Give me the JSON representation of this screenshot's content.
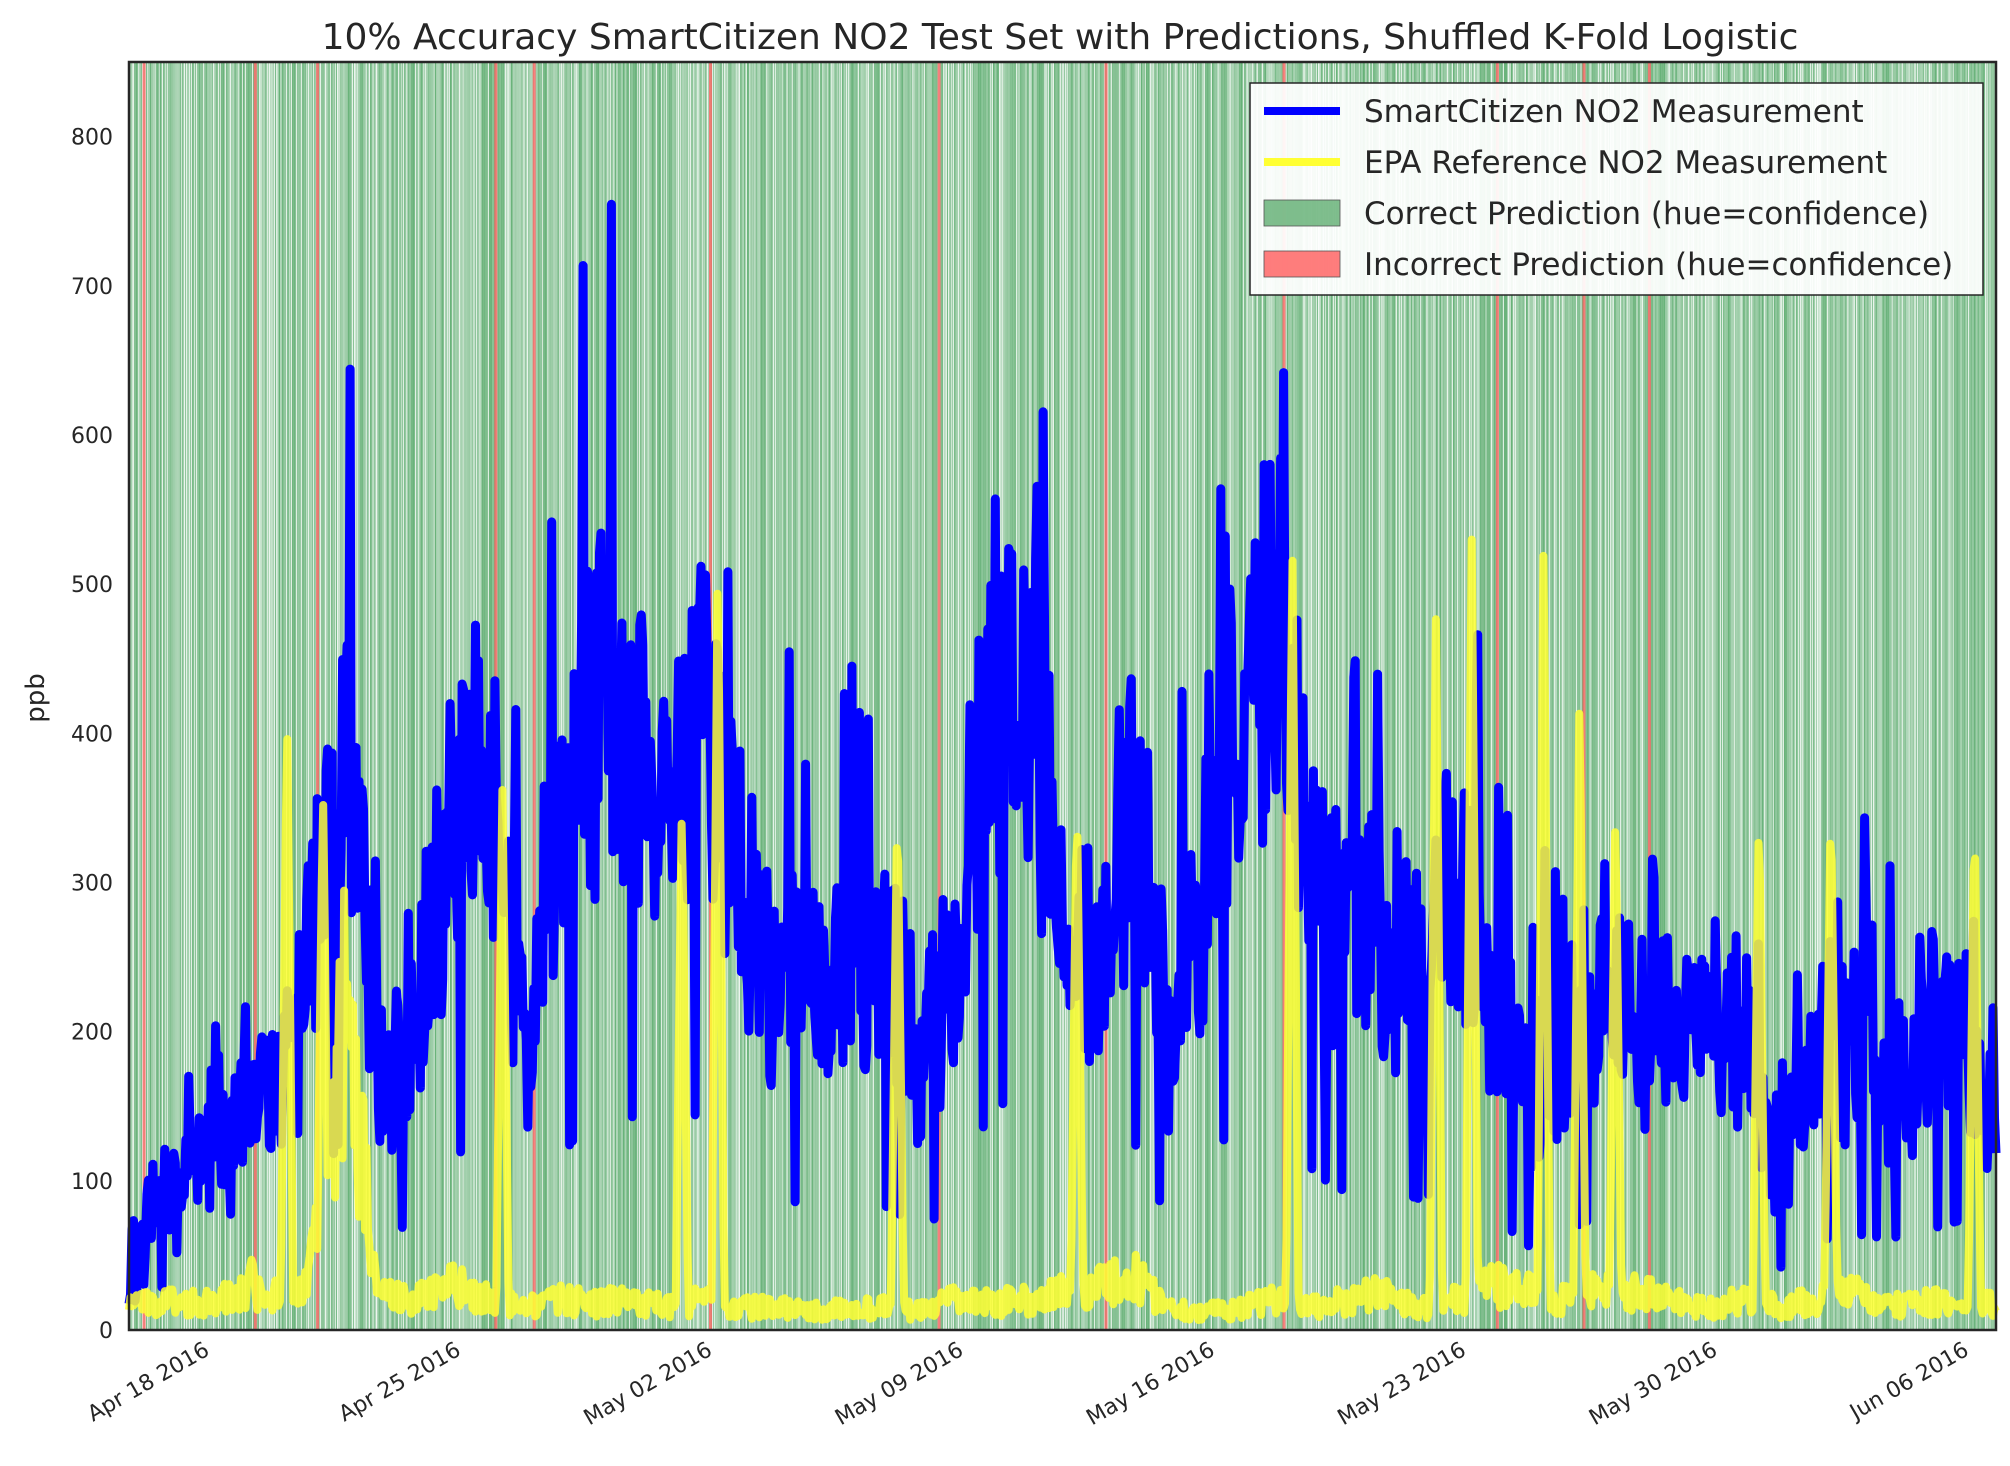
{
  "chart_data": {
    "type": "line",
    "title": "10% Accuracy SmartCitizen NO2 Test Set with Predictions, Shuffled K-Fold Logistic",
    "xlabel": "",
    "ylabel": "ppb",
    "xlim": [
      "2016-04-16",
      "2016-06-07"
    ],
    "ylim": [
      0,
      850
    ],
    "yticks": [
      0,
      100,
      200,
      300,
      400,
      500,
      600,
      700,
      800
    ],
    "xticks": [
      {
        "date": "2016-04-18",
        "label": "Apr 18 2016"
      },
      {
        "date": "2016-04-25",
        "label": "Apr 25 2016"
      },
      {
        "date": "2016-05-02",
        "label": "May 02 2016"
      },
      {
        "date": "2016-05-09",
        "label": "May 09 2016"
      },
      {
        "date": "2016-05-16",
        "label": "May 16 2016"
      },
      {
        "date": "2016-05-23",
        "label": "May 23 2016"
      },
      {
        "date": "2016-05-30",
        "label": "May 30 2016"
      },
      {
        "date": "2016-06-06",
        "label": "Jun 06 2016"
      }
    ],
    "grid": false,
    "legend_position": "top-right",
    "series": [
      {
        "name": "SmartCitizen NO2 Measurement",
        "color": "#0000ff",
        "points": [
          [
            "2016-04-16",
            50
          ],
          [
            "2016-04-17",
            85
          ],
          [
            "2016-04-18",
            130
          ],
          [
            "2016-04-19",
            140
          ],
          [
            "2016-04-20",
            165
          ],
          [
            "2016-04-21",
            240
          ],
          [
            "2016-04-22",
            380
          ],
          [
            "2016-04-23",
            175
          ],
          [
            "2016-04-24",
            210
          ],
          [
            "2016-04-25",
            320
          ],
          [
            "2016-04-26",
            410
          ],
          [
            "2016-04-27",
            180
          ],
          [
            "2016-04-28",
            330
          ],
          [
            "2016-04-29",
            420
          ],
          [
            "2016-04-30",
            410
          ],
          [
            "2016-05-01",
            320
          ],
          [
            "2016-05-02",
            440
          ],
          [
            "2016-05-03",
            300
          ],
          [
            "2016-05-04",
            240
          ],
          [
            "2016-05-05",
            250
          ],
          [
            "2016-05-06",
            245
          ],
          [
            "2016-05-07",
            240
          ],
          [
            "2016-05-08",
            200
          ],
          [
            "2016-05-09",
            230
          ],
          [
            "2016-05-10",
            430
          ],
          [
            "2016-05-11",
            440
          ],
          [
            "2016-05-12",
            270
          ],
          [
            "2016-05-13",
            230
          ],
          [
            "2016-05-14",
            360
          ],
          [
            "2016-05-15",
            200
          ],
          [
            "2016-05-16",
            300
          ],
          [
            "2016-05-17",
            430
          ],
          [
            "2016-05-18",
            470
          ],
          [
            "2016-05-19",
            300
          ],
          [
            "2016-05-20",
            260
          ],
          [
            "2016-05-21",
            270
          ],
          [
            "2016-05-22",
            250
          ],
          [
            "2016-05-23",
            300
          ],
          [
            "2016-05-24",
            220
          ],
          [
            "2016-05-25",
            160
          ],
          [
            "2016-05-26",
            190
          ],
          [
            "2016-05-27",
            220
          ],
          [
            "2016-05-28",
            200
          ],
          [
            "2016-05-29",
            210
          ],
          [
            "2016-05-30",
            205
          ],
          [
            "2016-05-31",
            190
          ],
          [
            "2016-06-01",
            120
          ],
          [
            "2016-06-02",
            170
          ],
          [
            "2016-06-03",
            185
          ],
          [
            "2016-06-04",
            175
          ],
          [
            "2016-06-05",
            190
          ],
          [
            "2016-06-06",
            210
          ],
          [
            "2016-06-07",
            150
          ]
        ]
      },
      {
        "name": "EPA Reference NO2 Measurement",
        "color": "#ffff33",
        "points": [
          [
            "2016-04-16",
            15
          ],
          [
            "2016-04-17",
            20
          ],
          [
            "2016-04-18",
            18
          ],
          [
            "2016-04-19",
            25
          ],
          [
            "2016-04-20",
            22
          ],
          [
            "2016-04-21",
            30
          ],
          [
            "2016-04-22",
            200
          ],
          [
            "2016-04-23",
            25
          ],
          [
            "2016-04-24",
            20
          ],
          [
            "2016-04-25",
            30
          ],
          [
            "2016-04-26",
            20
          ],
          [
            "2016-04-27",
            15
          ],
          [
            "2016-04-28",
            20
          ],
          [
            "2016-04-29",
            18
          ],
          [
            "2016-04-30",
            20
          ],
          [
            "2016-05-01",
            15
          ],
          [
            "2016-05-02",
            20
          ],
          [
            "2016-05-03",
            15
          ],
          [
            "2016-05-04",
            15
          ],
          [
            "2016-05-05",
            12
          ],
          [
            "2016-05-06",
            14
          ],
          [
            "2016-05-07",
            15
          ],
          [
            "2016-05-08",
            12
          ],
          [
            "2016-05-09",
            20
          ],
          [
            "2016-05-10",
            18
          ],
          [
            "2016-05-11",
            20
          ],
          [
            "2016-05-12",
            25
          ],
          [
            "2016-05-13",
            30
          ],
          [
            "2016-05-14",
            35
          ],
          [
            "2016-05-15",
            15
          ],
          [
            "2016-05-16",
            12
          ],
          [
            "2016-05-17",
            15
          ],
          [
            "2016-05-18",
            20
          ],
          [
            "2016-05-19",
            15
          ],
          [
            "2016-05-20",
            20
          ],
          [
            "2016-05-21",
            25
          ],
          [
            "2016-05-22",
            15
          ],
          [
            "2016-05-23",
            20
          ],
          [
            "2016-05-24",
            30
          ],
          [
            "2016-05-25",
            25
          ],
          [
            "2016-05-26",
            20
          ],
          [
            "2016-05-27",
            30
          ],
          [
            "2016-05-28",
            25
          ],
          [
            "2016-05-29",
            20
          ],
          [
            "2016-05-30",
            15
          ],
          [
            "2016-05-31",
            20
          ],
          [
            "2016-06-01",
            15
          ],
          [
            "2016-06-02",
            20
          ],
          [
            "2016-06-03",
            25
          ],
          [
            "2016-06-04",
            15
          ],
          [
            "2016-06-05",
            20
          ],
          [
            "2016-06-06",
            15
          ],
          [
            "2016-06-07",
            18
          ]
        ],
        "peaks": [
          [
            "2016-04-19",
            50
          ],
          [
            "2016-04-20",
            410
          ],
          [
            "2016-04-21",
            365
          ],
          [
            "2016-04-26",
            355
          ],
          [
            "2016-05-01",
            355
          ],
          [
            "2016-05-02",
            520
          ],
          [
            "2016-05-07",
            355
          ],
          [
            "2016-05-12",
            355
          ],
          [
            "2016-05-18",
            525
          ],
          [
            "2016-05-22",
            470
          ],
          [
            "2016-05-23",
            525
          ],
          [
            "2016-05-25",
            525
          ],
          [
            "2016-05-26",
            425
          ],
          [
            "2016-05-27",
            345
          ],
          [
            "2016-05-31",
            345
          ],
          [
            "2016-06-02",
            360
          ],
          [
            "2016-06-06",
            345
          ]
        ]
      }
    ],
    "prediction_bands": {
      "correct_color": "#55a868",
      "incorrect_color": "#ff6666",
      "incorrect_dates": [
        "2016-04-16",
        "2016-04-19",
        "2016-04-21",
        "2016-04-26",
        "2016-04-27",
        "2016-05-02",
        "2016-05-08",
        "2016-05-13",
        "2016-05-18",
        "2016-05-24",
        "2016-05-26",
        "2016-05-28"
      ]
    },
    "legend": [
      {
        "label": "SmartCitizen NO2 Measurement",
        "kind": "line",
        "color": "#0000ff"
      },
      {
        "label": "EPA Reference NO2 Measurement",
        "kind": "line",
        "color": "#ffff33"
      },
      {
        "label": "Correct Prediction (hue=confidence)",
        "kind": "patch",
        "color": "#55a868"
      },
      {
        "label": "Incorrect Prediction (hue=confidence)",
        "kind": "patch",
        "color": "#ff6666"
      }
    ]
  }
}
